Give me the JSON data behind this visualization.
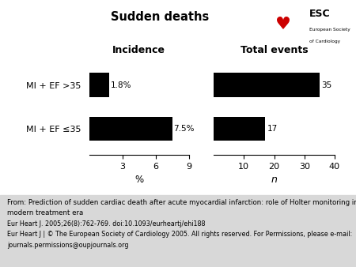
{
  "title": "Sudden deaths",
  "categories": [
    "MI + EF >35",
    "MI + EF ≤35"
  ],
  "incidence_values": [
    1.8,
    7.5
  ],
  "incidence_labels": [
    "1.8%",
    "7.5%"
  ],
  "incidence_xlim": [
    0,
    9
  ],
  "incidence_xticks": [
    3,
    6,
    9
  ],
  "incidence_xlabel": "%",
  "total_values": [
    35,
    17
  ],
  "total_labels": [
    "35",
    "17"
  ],
  "total_xlim": [
    0,
    40
  ],
  "total_xticks": [
    10,
    20,
    30,
    40
  ],
  "total_xlabel": "n",
  "bar_color": "#000000",
  "bar_height": 0.55,
  "label_incidence": "Incidence",
  "label_total": "Total events",
  "footer_lines": [
    "From: Prediction of sudden cardiac death after acute myocardial infarction: role of Holter monitoring in the",
    "modern treatment era",
    "Eur Heart J. 2005;26(8):762-769. doi:10.1093/eurheartj/ehi188",
    "Eur Heart J | © The European Society of Cardiology 2005. All rights reserved. For Permissions, please e-mail:",
    "journals.permissions@oupjournals.org"
  ],
  "bg_color": "#ffffff",
  "footer_bg": "#d8d8d8"
}
